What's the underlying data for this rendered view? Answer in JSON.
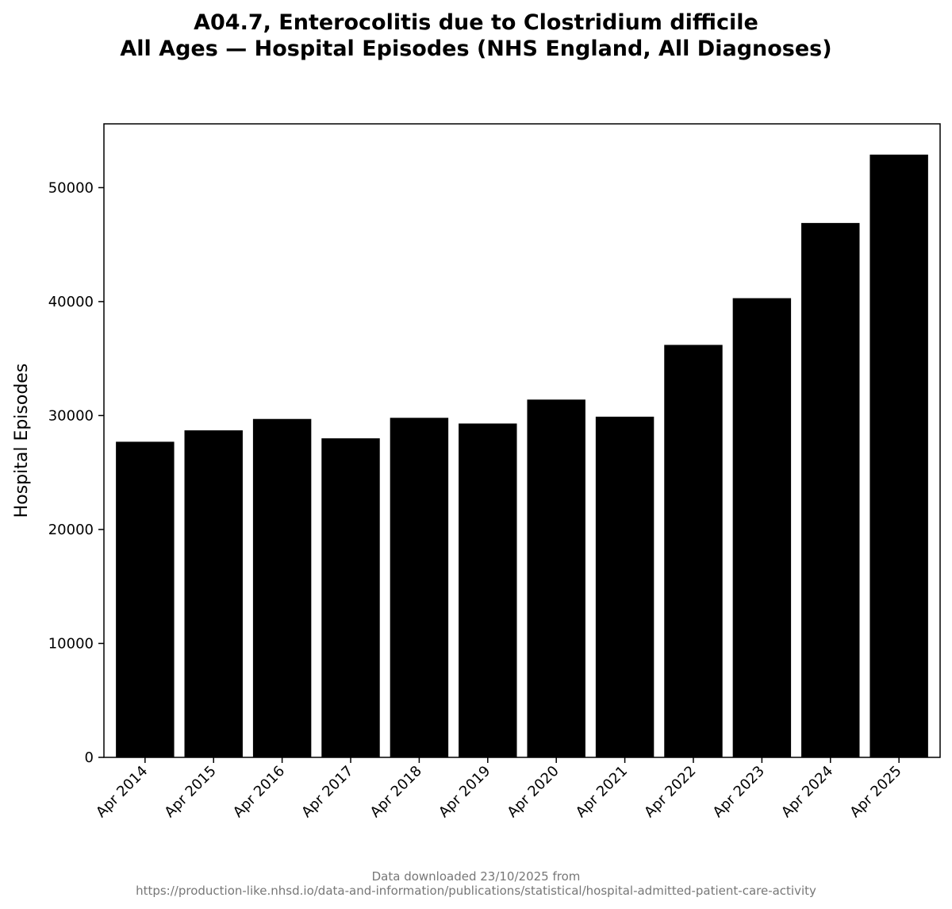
{
  "chart_data": {
    "type": "bar",
    "title_line1": "A04.7, Enterocolitis due to Clostridium difficile",
    "title_line2": "All Ages — Hospital Episodes (NHS England, All Diagnoses)",
    "xlabel": "",
    "ylabel": "Hospital Episodes",
    "categories": [
      "Apr 2014",
      "Apr 2015",
      "Apr 2016",
      "Apr 2017",
      "Apr 2018",
      "Apr 2019",
      "Apr 2020",
      "Apr 2021",
      "Apr 2022",
      "Apr 2023",
      "Apr 2024",
      "Apr 2025"
    ],
    "values": [
      27700,
      28700,
      29700,
      28000,
      29800,
      29300,
      31400,
      29900,
      36200,
      40300,
      46900,
      52900
    ],
    "ylim": [
      0,
      55600
    ],
    "yticks": [
      0,
      10000,
      20000,
      30000,
      40000,
      50000
    ],
    "bar_color": "#000000",
    "grid": false,
    "legend": "none"
  },
  "footer": {
    "line1": "Data downloaded 23/10/2025 from",
    "line2": "https://production-like.nhsd.io/data-and-information/publications/statistical/hospital-admitted-patient-care-activity"
  }
}
